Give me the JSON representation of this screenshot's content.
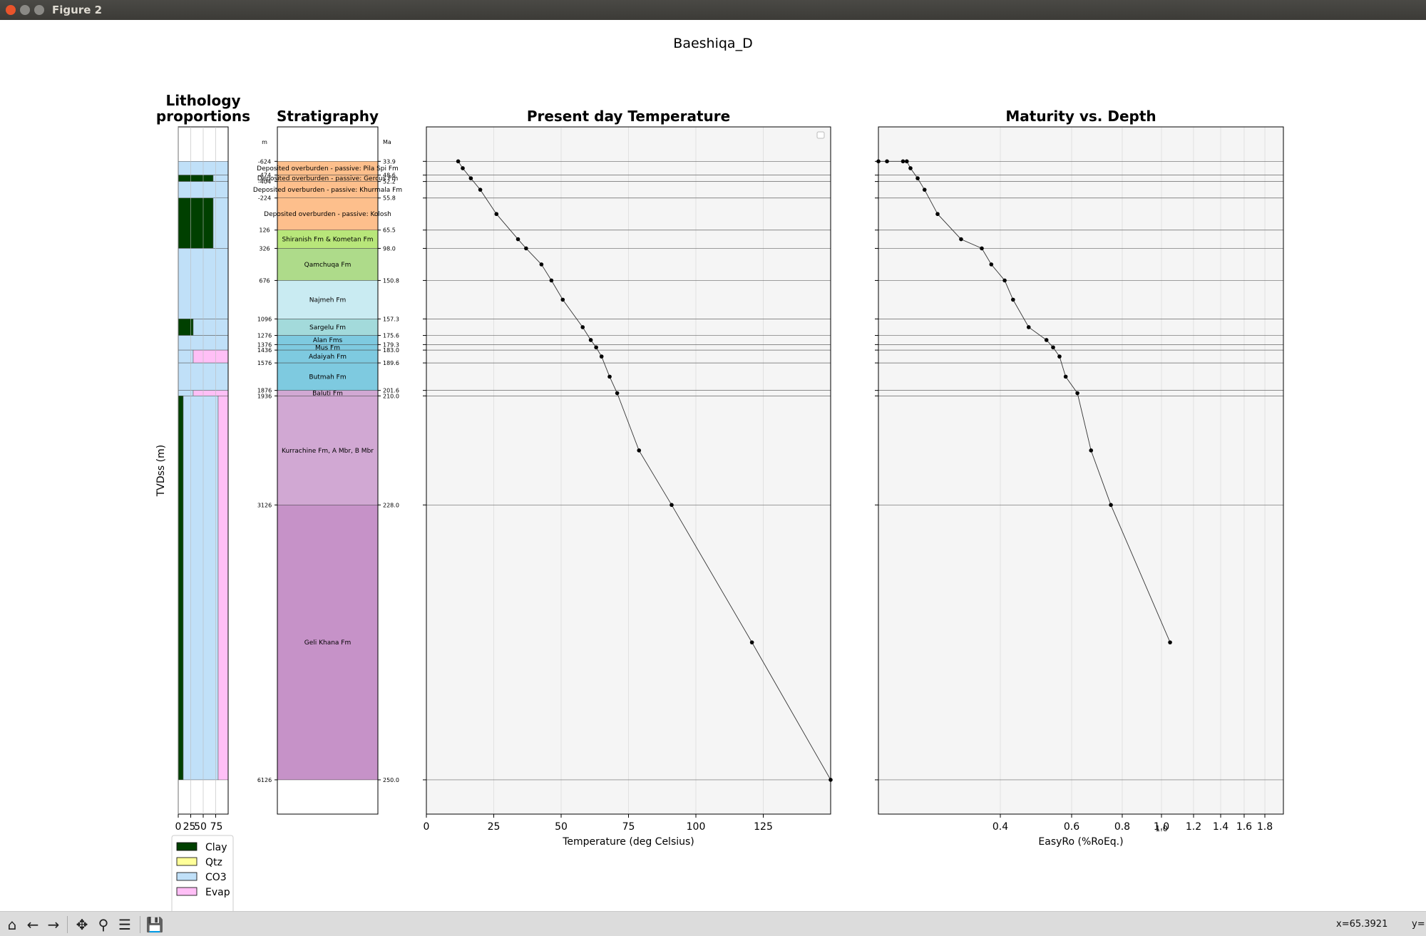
{
  "window": {
    "title": "Figure 2"
  },
  "figure": {
    "suptitle": "Baeshiqa_D"
  },
  "toolbar": {
    "coords_text": "x=65.3921",
    "coords_y": "y="
  },
  "colors": {
    "clay": "#004000",
    "qtz": "#ffff99",
    "co3": "#c0e0f8",
    "evap": "#ffbff6",
    "axes_bg": "#f5f5f5",
    "data_line": "#333333",
    "marker": "#000000"
  },
  "chart_data": [
    {
      "type": "bar",
      "name": "Lithology proportions",
      "title": "Lithology proportions",
      "ylabel": "TVDss (m)",
      "xticks": [
        "0",
        "25",
        "50",
        "75"
      ],
      "xlim": [
        0,
        100
      ],
      "legend": {
        "placement": "below",
        "entries": [
          "Clay",
          "Qtz",
          "CO3",
          "Evap"
        ]
      },
      "intervals": [
        {
          "top": -624,
          "base": -474,
          "clay": 0,
          "qtz": 0,
          "co3": 100,
          "evap": 0
        },
        {
          "top": -474,
          "base": -404,
          "clay": 70,
          "qtz": 0,
          "co3": 30,
          "evap": 0
        },
        {
          "top": -404,
          "base": -224,
          "clay": 0,
          "qtz": 0,
          "co3": 100,
          "evap": 0
        },
        {
          "top": -224,
          "base": 326,
          "clay": 70,
          "qtz": 0,
          "co3": 30,
          "evap": 0
        },
        {
          "top": 326,
          "base": 1096,
          "clay": 0,
          "qtz": 0,
          "co3": 100,
          "evap": 0
        },
        {
          "top": 1096,
          "base": 1276,
          "clay": 30,
          "qtz": 0,
          "co3": 70,
          "evap": 0
        },
        {
          "top": 1276,
          "base": 1436,
          "clay": 0,
          "qtz": 0,
          "co3": 100,
          "evap": 0
        },
        {
          "top": 1436,
          "base": 1576,
          "clay": 0,
          "qtz": 0,
          "co3": 30,
          "evap": 70
        },
        {
          "top": 1576,
          "base": 1876,
          "clay": 0,
          "qtz": 0,
          "co3": 100,
          "evap": 0
        },
        {
          "top": 1876,
          "base": 1936,
          "clay": 0,
          "qtz": 0,
          "co3": 30,
          "evap": 70
        },
        {
          "top": 1936,
          "base": 6126,
          "clay": 10,
          "qtz": 0,
          "co3": 70,
          "evap": 20
        }
      ]
    },
    {
      "type": "table",
      "name": "Stratigraphy",
      "title": "Stratigraphy",
      "left_unit": "m",
      "right_unit": "Ma",
      "units": [
        {
          "name": "Deposited overburden - passive: Pila Spi Fm",
          "top": -624,
          "base": -474,
          "color": "#fdbf8c",
          "top_label": "-624",
          "age_label": "33.9"
        },
        {
          "name": "Deposited overburden - passive: Gercus Fm",
          "top": -474,
          "base": -404,
          "color": "#fdbf8c",
          "top_label": "-474",
          "age_label": "48.6"
        },
        {
          "name": "Deposited overburden - passive: Khurmala Fm",
          "top": -404,
          "base": -224,
          "color": "#fdbf8c",
          "top_label": "-404",
          "age_label": "52.2"
        },
        {
          "name": "Deposited overburden - passive: Kolosh",
          "top": -224,
          "base": 126,
          "color": "#fdbf8c",
          "top_label": "-224",
          "age_label": "55.8"
        },
        {
          "name": "Shiranish Fm & Kometan Fm",
          "top": 126,
          "base": 326,
          "color": "#b8e67a",
          "top_label": "126",
          "age_label": "65.5"
        },
        {
          "name": "Qamchuqa Fm",
          "top": 326,
          "base": 676,
          "color": "#aedb8a",
          "top_label": "326",
          "age_label": "98.0"
        },
        {
          "name": "Najmeh Fm",
          "top": 676,
          "base": 1096,
          "color": "#c9ebf2",
          "top_label": "676",
          "age_label": "150.8"
        },
        {
          "name": "Sargelu Fm",
          "top": 1096,
          "base": 1276,
          "color": "#a3dadb",
          "top_label": "1096",
          "age_label": "157.3"
        },
        {
          "name": "Alan Fms",
          "top": 1276,
          "base": 1376,
          "color": "#7ecae0",
          "top_label": "1276",
          "age_label": "175.6"
        },
        {
          "name": "Mus Fm",
          "top": 1376,
          "base": 1436,
          "color": "#7ecae0",
          "top_label": "1376",
          "age_label": "179.3"
        },
        {
          "name": "Adaiyah Fm",
          "top": 1436,
          "base": 1576,
          "color": "#7ecae0",
          "top_label": "1436",
          "age_label": "183.0"
        },
        {
          "name": "Butmah Fm",
          "top": 1576,
          "base": 1876,
          "color": "#7ecae0",
          "top_label": "1576",
          "age_label": "189.6"
        },
        {
          "name": "Baluti Fm",
          "top": 1876,
          "base": 1936,
          "color": "#d1a8d3",
          "top_label": "1876",
          "age_label": "201.6"
        },
        {
          "name": "Kurrachine Fm, A Mbr, B Mbr",
          "top": 1936,
          "base": 3126,
          "color": "#d1a8d3",
          "top_label": "1936",
          "age_label": "210.0"
        },
        {
          "name": "Geli Khana Fm",
          "top": 3126,
          "base": 6126,
          "color": "#c692c8",
          "top_label": "3126",
          "age_label": "228.0"
        }
      ],
      "bottom_label": "6126",
      "bottom_age": "250.0"
    },
    {
      "type": "line",
      "name": "Present day Temperature",
      "title": "Present day Temperature",
      "xlabel": "Temperature (deg Celsius)",
      "xlim": [
        0,
        150
      ],
      "xticks": [
        "0",
        "25",
        "50",
        "75",
        "100",
        "125"
      ],
      "ylim": [
        6500,
        -1000
      ],
      "grid": true,
      "series": [
        {
          "x": [
            11.8,
            13.5,
            16.5,
            20,
            26,
            34,
            37,
            42.7,
            46.4,
            50.6,
            58,
            61,
            63,
            65,
            68,
            70.8,
            78.9,
            91,
            120.8,
            150
          ],
          "y": [
            -624,
            -549,
            -439,
            -314,
            -49,
            226,
            326,
            501,
            676,
            886,
            1186,
            1326,
            1406,
            1506,
            1726,
            1906,
            2531,
            3126,
            4626,
            6126
          ]
        }
      ]
    },
    {
      "type": "line",
      "name": "Maturity vs. Depth",
      "title": "Maturity vs. Depth",
      "xlabel": "EasyRo (%RoEq.)",
      "xscale": "log",
      "xlim": [
        0.2,
        2.0
      ],
      "xticks": [
        "0.4",
        "0.6",
        "0.8",
        "1.0",
        "1.2",
        "1.4",
        "1.6",
        "1.8"
      ],
      "extra_tick_label": "1.0",
      "ylim": [
        6500,
        -1000
      ],
      "grid": true,
      "series": [
        {
          "x": [
            0.2,
            0.21,
            0.23,
            0.235,
            0.24,
            0.25,
            0.26,
            0.28,
            0.32,
            0.36,
            0.38,
            0.41,
            0.43,
            0.47,
            0.52,
            0.54,
            0.56,
            0.58,
            0.62,
            0.67,
            0.75,
            1.05
          ],
          "y": [
            -624,
            -624,
            -624,
            -624,
            -549,
            -439,
            -314,
            -49,
            226,
            326,
            501,
            676,
            886,
            1186,
            1326,
            1406,
            1506,
            1726,
            1906,
            2531,
            3126,
            4626
          ]
        }
      ]
    }
  ]
}
